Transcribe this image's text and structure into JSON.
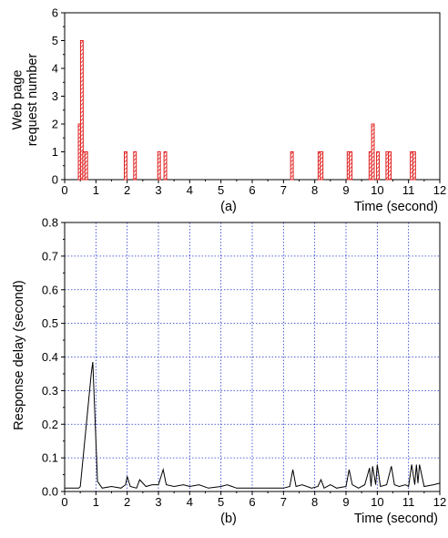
{
  "chart_data": [
    {
      "type": "bar",
      "caption": "(a)",
      "xlabel": "Time (second)",
      "ylabel_lines": [
        "Web page",
        "request number"
      ],
      "xlim": [
        0,
        12
      ],
      "ylim": [
        0,
        6
      ],
      "xticks": [
        0,
        1,
        2,
        3,
        4,
        5,
        6,
        7,
        8,
        9,
        10,
        11,
        12
      ],
      "yticks": [
        0,
        1,
        2,
        3,
        4,
        5,
        6
      ],
      "grid": false,
      "bar_color": "#e02020",
      "bar_fill": "hatched",
      "x": [
        0.48,
        0.55,
        0.62,
        0.69,
        1.95,
        2.25,
        3.02,
        3.22,
        7.27,
        8.15,
        8.22,
        9.08,
        9.15,
        9.78,
        9.86,
        10.02,
        10.32,
        10.4,
        11.1,
        11.18
      ],
      "values": [
        2,
        5,
        1,
        1,
        1,
        1,
        1,
        1,
        1,
        1,
        1,
        1,
        1,
        1,
        2,
        1,
        1,
        1,
        1,
        1
      ]
    },
    {
      "type": "line",
      "caption": "(b)",
      "xlabel": "Time (second)",
      "ylabel": "Response delay (second)",
      "xlim": [
        0,
        12
      ],
      "ylim": [
        0,
        0.8
      ],
      "xticks": [
        0,
        1,
        2,
        3,
        4,
        5,
        6,
        7,
        8,
        9,
        10,
        11,
        12
      ],
      "yticks": [
        0.0,
        0.1,
        0.2,
        0.3,
        0.4,
        0.5,
        0.6,
        0.7,
        0.8
      ],
      "grid": true,
      "grid_color": "#2233cc",
      "line_color": "#000000",
      "x": [
        0.0,
        0.45,
        0.5,
        0.85,
        0.9,
        1.05,
        1.2,
        1.5,
        1.8,
        1.95,
        2.0,
        2.1,
        2.3,
        2.4,
        2.6,
        2.8,
        3.0,
        3.15,
        3.25,
        3.5,
        3.8,
        4.0,
        4.3,
        4.6,
        5.0,
        5.2,
        5.5,
        6.0,
        6.5,
        7.0,
        7.2,
        7.3,
        7.4,
        7.6,
        7.9,
        8.1,
        8.2,
        8.3,
        8.5,
        8.7,
        9.0,
        9.1,
        9.2,
        9.4,
        9.6,
        9.75,
        9.8,
        9.85,
        9.95,
        10.0,
        10.1,
        10.3,
        10.45,
        10.55,
        10.7,
        10.9,
        11.0,
        11.1,
        11.2,
        11.25,
        11.3,
        11.35,
        11.5,
        11.8,
        12.0
      ],
      "y": [
        0.01,
        0.01,
        0.015,
        0.35,
        0.385,
        0.03,
        0.01,
        0.015,
        0.01,
        0.02,
        0.045,
        0.015,
        0.01,
        0.035,
        0.015,
        0.02,
        0.02,
        0.065,
        0.02,
        0.015,
        0.02,
        0.015,
        0.02,
        0.01,
        0.015,
        0.02,
        0.01,
        0.01,
        0.01,
        0.01,
        0.015,
        0.065,
        0.015,
        0.02,
        0.01,
        0.015,
        0.035,
        0.01,
        0.02,
        0.01,
        0.015,
        0.065,
        0.02,
        0.01,
        0.02,
        0.07,
        0.015,
        0.075,
        0.02,
        0.08,
        0.015,
        0.02,
        0.075,
        0.02,
        0.015,
        0.02,
        0.015,
        0.08,
        0.02,
        0.08,
        0.025,
        0.08,
        0.015,
        0.02,
        0.025
      ]
    }
  ]
}
